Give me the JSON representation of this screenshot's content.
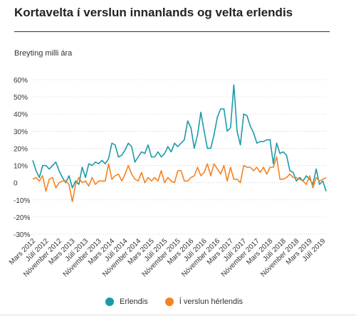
{
  "header": {
    "title": "Kortavelta í verslun innanlands og velta erlendis",
    "subtitle": "Breyting milli ára"
  },
  "legend": {
    "items": [
      {
        "label": "Erlendis",
        "color": "#1a9aa8"
      },
      {
        "label": "Í verslun hérlendis",
        "color": "#f58220"
      }
    ]
  },
  "chart_data": {
    "type": "line",
    "ylim": [
      -30,
      60
    ],
    "yticks": [
      60,
      50,
      40,
      30,
      20,
      10,
      0,
      -10,
      -20,
      -30
    ],
    "ytick_labels": [
      "60%",
      "50%",
      "40%",
      "30%",
      "20%",
      "10%",
      "0",
      "-10%",
      "-20%",
      "-30%"
    ],
    "grid": "horizontal",
    "legend_position": "bottom",
    "x": [
      "2012-03",
      "2012-04",
      "2012-05",
      "2012-06",
      "2012-07",
      "2012-08",
      "2012-09",
      "2012-10",
      "2012-11",
      "2012-12",
      "2013-01",
      "2013-02",
      "2013-03",
      "2013-04",
      "2013-05",
      "2013-06",
      "2013-07",
      "2013-08",
      "2013-09",
      "2013-10",
      "2013-11",
      "2013-12",
      "2014-01",
      "2014-02",
      "2014-03",
      "2014-04",
      "2014-05",
      "2014-06",
      "2014-07",
      "2014-08",
      "2014-09",
      "2014-10",
      "2014-11",
      "2014-12",
      "2015-01",
      "2015-02",
      "2015-03",
      "2015-04",
      "2015-05",
      "2015-06",
      "2015-07",
      "2015-08",
      "2015-09",
      "2015-10",
      "2015-11",
      "2015-12",
      "2016-01",
      "2016-02",
      "2016-03",
      "2016-04",
      "2016-05",
      "2016-06",
      "2016-07",
      "2016-08",
      "2016-09",
      "2016-10",
      "2016-11",
      "2016-12",
      "2017-01",
      "2017-02",
      "2017-03",
      "2017-04",
      "2017-05",
      "2017-06",
      "2017-07",
      "2017-08",
      "2017-09",
      "2017-10",
      "2017-11",
      "2017-12",
      "2018-01",
      "2018-02",
      "2018-03",
      "2018-04",
      "2018-05",
      "2018-06",
      "2018-07",
      "2018-08",
      "2018-09",
      "2018-10",
      "2018-11",
      "2018-12",
      "2019-01",
      "2019-02",
      "2019-03",
      "2019-04",
      "2019-05",
      "2019-06",
      "2019-07",
      "2019-08"
    ],
    "xtick_labels": [
      "Mars 2012",
      "Júlí 2012",
      "Nóvember 2012",
      "Mars 2013",
      "Júlí 2013",
      "Nóvember 2013",
      "Mars 2014",
      "Júlí 2014",
      "Nóvember 2014",
      "Mars 2015",
      "Júlí 2015",
      "Nóvember 2015",
      "Mars 2016",
      "Júlí 2016",
      "Nóvember 2016",
      "Mars 2017",
      "Júlí 2017",
      "Nóvember 2017",
      "Mars 2018",
      "Júlí 2018",
      "Nóvember 2018",
      "Mars 2019",
      "Júlí 2019"
    ],
    "series": [
      {
        "name": "Erlendis",
        "color": "#1a9aa8",
        "values": [
          13,
          7,
          3,
          10,
          10,
          8,
          10,
          12,
          7,
          3,
          0,
          4,
          -3,
          1,
          -1,
          9,
          3,
          11,
          10,
          12,
          11,
          13,
          11,
          14,
          23,
          22,
          15,
          16,
          19,
          23,
          21,
          12,
          15,
          18,
          17,
          22,
          15,
          15,
          18,
          15,
          17,
          21,
          18,
          23,
          21,
          23,
          25,
          36,
          32,
          20,
          28,
          41,
          30,
          20,
          20,
          28,
          38,
          43,
          43,
          30,
          32,
          57,
          30,
          22,
          40,
          39,
          33,
          29,
          23,
          24,
          24,
          25,
          25,
          11,
          23,
          17,
          18,
          16,
          7,
          6,
          1,
          3,
          1,
          4,
          2,
          -1,
          8,
          -1,
          1,
          -5
        ]
      },
      {
        "name": "Í verslun hérlendis",
        "color": "#f58220",
        "values": [
          2,
          3,
          1,
          4,
          -5,
          2,
          3,
          -3,
          0,
          1,
          1,
          -1,
          -11,
          -1,
          3,
          0,
          1,
          -2,
          3,
          -1,
          1,
          1,
          1,
          11,
          2,
          4,
          5,
          1,
          5,
          10,
          5,
          2,
          1,
          6,
          0,
          3,
          1,
          3,
          1,
          7,
          0,
          3,
          1,
          0,
          7,
          7,
          1,
          1,
          3,
          4,
          9,
          4,
          6,
          11,
          4,
          11,
          8,
          5,
          10,
          1,
          9,
          2,
          2,
          0,
          10,
          9,
          9,
          7,
          9,
          6,
          9,
          5,
          9,
          9,
          15,
          2,
          2,
          3,
          5,
          3,
          3,
          2,
          1,
          -1,
          4,
          -3,
          3,
          1,
          2,
          3
        ]
      }
    ]
  }
}
